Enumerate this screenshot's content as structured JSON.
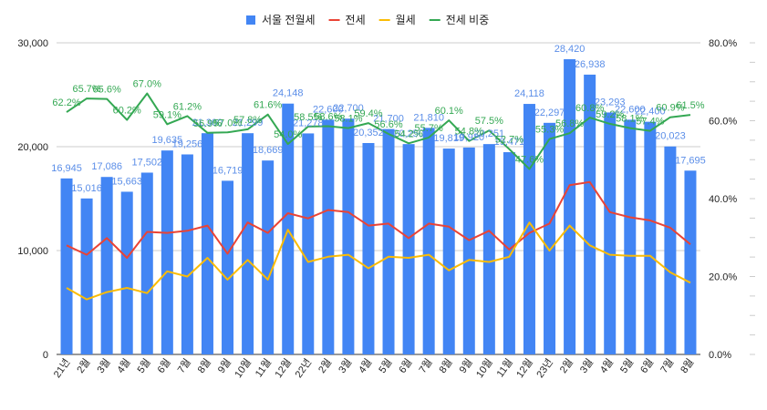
{
  "chart_data": {
    "type": "bar",
    "categories": [
      "21년",
      "2월",
      "3월",
      "4월",
      "5월",
      "6월",
      "7월",
      "8월",
      "9월",
      "10월",
      "11월",
      "12월",
      "22년",
      "2월",
      "3월",
      "4월",
      "5월",
      "6월",
      "7월",
      "8월",
      "9월",
      "10월",
      "11월",
      "12월",
      "23년",
      "2월",
      "3월",
      "4월",
      "5월",
      "6월",
      "7월",
      "8월"
    ],
    "series": [
      {
        "name": "서울 전월세",
        "kind": "bar",
        "axis": "left",
        "color": "#4285f4",
        "values": [
          16945,
          15016,
          17086,
          15663,
          17502,
          19635,
          19256,
          21300,
          16719,
          21299,
          18669,
          24148,
          21278,
          22600,
          22700,
          20352,
          21700,
          20250,
          21810,
          19819,
          19920,
          20251,
          19471,
          24118,
          22297,
          28420,
          26938,
          23293,
          22600,
          22400,
          20023,
          17695
        ]
      },
      {
        "name": "전세",
        "kind": "line",
        "axis": "left",
        "color": "#ea4335",
        "values": [
          10500,
          9600,
          11200,
          9300,
          11800,
          11700,
          11900,
          12400,
          9700,
          12700,
          11700,
          13600,
          13100,
          13900,
          13700,
          12400,
          12600,
          11200,
          12600,
          12300,
          11000,
          11900,
          10100,
          11700,
          12600,
          16300,
          16600,
          13700,
          13200,
          12900,
          12200,
          10600
        ]
      },
      {
        "name": "월세",
        "kind": "line",
        "axis": "left",
        "color": "#fbbc04",
        "values": [
          6400,
          5300,
          6000,
          6400,
          5900,
          8000,
          7500,
          9300,
          7200,
          9100,
          7200,
          12000,
          8900,
          9400,
          9600,
          8300,
          9400,
          9300,
          9600,
          8100,
          9100,
          8900,
          9400,
          12700,
          10000,
          12400,
          10500,
          9600,
          9500,
          9500,
          7900,
          6900
        ]
      },
      {
        "name": "전세 비중",
        "kind": "line",
        "axis": "right",
        "color": "#34a853",
        "values": [
          62.2,
          65.7,
          65.6,
          60.2,
          67.0,
          59.1,
          61.2,
          56.9,
          57.0,
          57.8,
          61.6,
          54.0,
          58.5,
          58.6,
          58.1,
          59.4,
          56.6,
          54.2,
          55.7,
          60.1,
          54.8,
          57.5,
          52.7,
          47.6,
          55.3,
          56.8,
          60.8,
          59.2,
          58.1,
          57.4,
          60.9,
          61.5
        ]
      }
    ],
    "bar_labels": [
      "16,945",
      "15,016",
      "17,086",
      "15,663",
      "17,502",
      "19,635",
      "19,256",
      "21,300",
      "16,719",
      "21,299",
      "18,669",
      "24,148",
      "21,278",
      "22,600",
      "22,700",
      "20,352",
      "21,700",
      "20,250",
      "21,810",
      "19,819",
      "19,920",
      "20,251",
      "19,471",
      "24,118",
      "22,297",
      "28,420",
      "26,938",
      "23,293",
      "22,600",
      "22,400",
      "20,023",
      "17,695"
    ],
    "ratio_labels": [
      "62.2%",
      "65.7%",
      "65.6%",
      "60.2%",
      "67.0%",
      "59.1%",
      "61.2%",
      "56.9%",
      "57.0%",
      "57.8%",
      "61.6%",
      "54.0%",
      "58.5%",
      "58.6%",
      "58.1%",
      "59.4%",
      "56.6%",
      "54.2%",
      "55.7%",
      "60.1%",
      "54.8%",
      "57.5%",
      "52.7%",
      "47.6%",
      "55.3%",
      "56.8%",
      "60.8%",
      "59.2%",
      "58.1%",
      "57.4%",
      "60.9%",
      "61.5%"
    ],
    "y_left": {
      "min": 0,
      "max": 30000,
      "ticks": [
        0,
        10000,
        20000,
        30000
      ],
      "tick_labels": [
        "0",
        "10,000",
        "20,000",
        "30,000"
      ]
    },
    "y_right": {
      "min": 0,
      "max": 80,
      "ticks": [
        0,
        20,
        40,
        60,
        80
      ],
      "tick_labels": [
        "0.0%",
        "20.0%",
        "40.0%",
        "60.0%",
        "80.0%"
      ]
    },
    "grid": true,
    "legend_position": "top",
    "title": "",
    "xlabel": "",
    "ylabel": ""
  }
}
